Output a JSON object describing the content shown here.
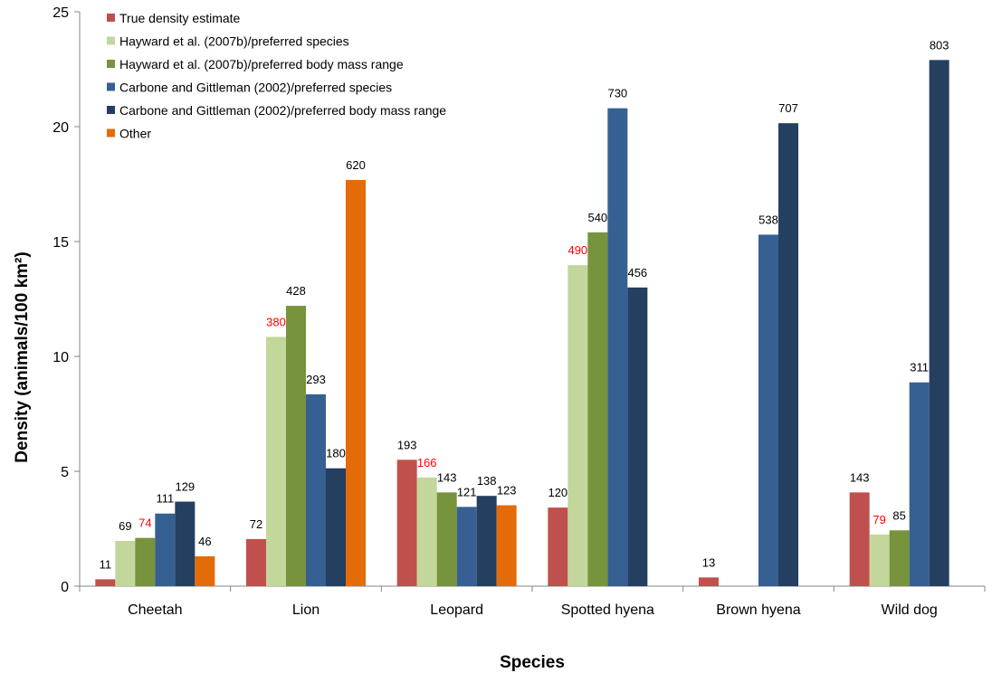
{
  "chart_data": {
    "type": "bar",
    "title": "",
    "xlabel": "Species",
    "ylabel": "Density (animals/100 km²)",
    "ylim": [
      0,
      25
    ],
    "yticks": [
      "0",
      "5",
      "10",
      "15",
      "20",
      "25"
    ],
    "grid": false,
    "legend_position": "top-left",
    "categories": [
      "Cheetah",
      "Lion",
      "Leopard",
      "Spotted hyena",
      "Brown hyena",
      "Wild dog"
    ],
    "highlight_color": "#ff0000",
    "series": [
      {
        "name": "True density estimate",
        "color": "#c0504d",
        "values": [
          0.3,
          2.05,
          5.5,
          3.42,
          0.38,
          4.08
        ],
        "labels": [
          "11",
          "72",
          "193",
          "120",
          "13",
          "143"
        ],
        "highlight": [
          false,
          false,
          false,
          false,
          false,
          false
        ]
      },
      {
        "name": "Hayward et al. (2007b)/preferred species",
        "color": "#c3d69b",
        "values": [
          1.97,
          10.85,
          4.73,
          13.97,
          null,
          2.25
        ],
        "labels": [
          "69",
          "380",
          "166",
          "490",
          "",
          "79"
        ],
        "highlight": [
          false,
          true,
          true,
          true,
          false,
          true
        ]
      },
      {
        "name": "Hayward et al. (2007b)/preferred body mass range",
        "color": "#77933c",
        "values": [
          2.1,
          12.2,
          4.08,
          15.4,
          null,
          2.43
        ],
        "labels": [
          "74",
          "428",
          "143",
          "540",
          "",
          "85"
        ],
        "highlight": [
          true,
          false,
          false,
          false,
          false,
          false
        ]
      },
      {
        "name": "Carbone and Gittleman (2002)/preferred species",
        "color": "#366092",
        "values": [
          3.16,
          8.35,
          3.45,
          20.8,
          15.3,
          8.87
        ],
        "labels": [
          "111",
          "293",
          "121",
          "730",
          "538",
          "311"
        ],
        "highlight": [
          false,
          false,
          false,
          false,
          false,
          false
        ]
      },
      {
        "name": "Carbone and Gittleman (2002)/preferred body mass range",
        "color": "#243f60",
        "values": [
          3.68,
          5.13,
          3.93,
          13.0,
          20.15,
          22.9
        ],
        "labels": [
          "129",
          "180",
          "138",
          "456",
          "707",
          "803"
        ],
        "highlight": [
          false,
          false,
          false,
          false,
          false,
          false
        ]
      },
      {
        "name": "Other",
        "color": "#e36c09",
        "values": [
          1.3,
          17.68,
          3.52,
          null,
          null,
          null
        ],
        "labels": [
          "46",
          "620",
          "123",
          "",
          "",
          ""
        ],
        "highlight": [
          false,
          false,
          false,
          false,
          false,
          false
        ]
      }
    ]
  }
}
